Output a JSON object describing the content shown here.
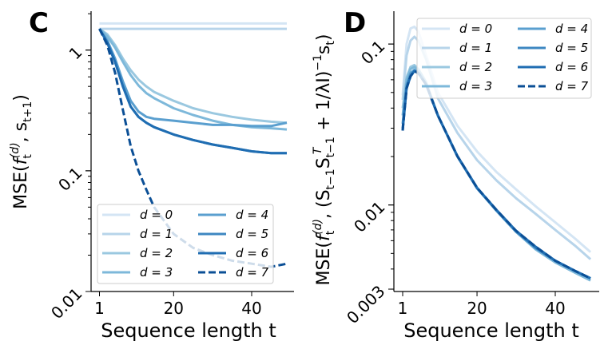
{
  "chart_data": [
    {
      "type": "line",
      "panel_label": "C",
      "xlabel": "Sequence length t",
      "ylabel": {
        "prefix": "MSE(",
        "f": "f",
        "f_sub": "t",
        "f_sup": "(d)",
        "mid": ", s",
        "s_sub": "t+1",
        "suffix": ")"
      },
      "xticks": [
        {
          "value": 1,
          "label": "1"
        },
        {
          "value": 20,
          "label": "20"
        },
        {
          "value": 40,
          "label": "40"
        }
      ],
      "yticks": [
        {
          "value": 1,
          "label": "1"
        },
        {
          "value": 0.1,
          "label": "0.1"
        },
        {
          "value": 0.01,
          "label": "0.01"
        }
      ],
      "xlim": [
        -1,
        51
      ],
      "ylim": [
        0.01,
        2.1
      ],
      "yscale": "log",
      "grid": false,
      "legend_placement": "lower-left",
      "x": [
        1,
        3,
        5,
        7,
        9,
        11,
        13,
        15,
        20,
        25,
        30,
        35,
        40,
        45,
        49
      ],
      "series": [
        {
          "name": "d = 0",
          "color": "#d4e5f4",
          "dashed": false,
          "values": [
            1.66,
            1.66,
            1.66,
            1.66,
            1.66,
            1.66,
            1.66,
            1.66,
            1.66,
            1.66,
            1.66,
            1.66,
            1.66,
            1.66,
            1.66
          ]
        },
        {
          "name": "d = 1",
          "color": "#b7d4ea",
          "dashed": false,
          "values": [
            1.5,
            1.5,
            1.5,
            1.5,
            1.5,
            1.5,
            1.5,
            1.5,
            1.5,
            1.5,
            1.5,
            1.5,
            1.5,
            1.5,
            1.5
          ]
        },
        {
          "name": "d = 2",
          "color": "#9ac8e0",
          "dashed": false,
          "values": [
            1.5,
            1.35,
            1.1,
            0.85,
            0.68,
            0.57,
            0.5,
            0.45,
            0.38,
            0.33,
            0.3,
            0.28,
            0.265,
            0.255,
            0.25
          ]
        },
        {
          "name": "d = 3",
          "color": "#7db8da",
          "dashed": false,
          "values": [
            1.5,
            1.3,
            1.05,
            0.8,
            0.62,
            0.51,
            0.44,
            0.4,
            0.33,
            0.29,
            0.26,
            0.24,
            0.23,
            0.225,
            0.22
          ]
        },
        {
          "name": "d = 4",
          "color": "#5a9fcf",
          "dashed": false,
          "values": [
            1.5,
            1.2,
            0.85,
            0.55,
            0.38,
            0.31,
            0.28,
            0.27,
            0.26,
            0.25,
            0.24,
            0.24,
            0.235,
            0.235,
            0.25
          ]
        },
        {
          "name": "d = 5",
          "color": "#3d87c1",
          "dashed": false,
          "values": [
            1.5,
            1.15,
            0.8,
            0.5,
            0.34,
            0.28,
            0.25,
            0.23,
            0.2,
            0.18,
            0.165,
            0.155,
            0.145,
            0.14,
            0.14
          ]
        },
        {
          "name": "d = 6",
          "color": "#1f6db2",
          "dashed": false,
          "values": [
            1.5,
            1.15,
            0.8,
            0.5,
            0.34,
            0.28,
            0.25,
            0.23,
            0.2,
            0.18,
            0.165,
            0.155,
            0.145,
            0.14,
            0.14
          ]
        },
        {
          "name": "d = 7",
          "color": "#0b4f96",
          "dashed": true,
          "values": [
            1.5,
            1.1,
            0.65,
            0.32,
            0.16,
            0.1,
            0.07,
            0.05,
            0.03,
            0.023,
            0.02,
            0.018,
            0.017,
            0.016,
            0.017
          ]
        }
      ]
    },
    {
      "type": "line",
      "panel_label": "D",
      "xlabel": "Sequence length t",
      "ylabel": {
        "prefix": "MSE(",
        "f": "f",
        "f_sub": "t",
        "f_sup": "(d)",
        "mid": ", (S",
        "s1_sub": "t−1",
        "s2": "S",
        "s2_sup": "T",
        "s2_sub": "t−1",
        "plus": " + 1/λI)",
        "inv_sup": "−1",
        "s3": "s",
        "s3_sub": "t",
        "suffix": ")"
      },
      "xticks": [
        {
          "value": 1,
          "label": "1"
        },
        {
          "value": 20,
          "label": "20"
        },
        {
          "value": 40,
          "label": "40"
        }
      ],
      "yticks": [
        {
          "value": 0.1,
          "label": "0.1"
        },
        {
          "value": 0.01,
          "label": "0.01"
        },
        {
          "value": 0.003,
          "label": "0.003"
        }
      ],
      "xlim": [
        -1,
        51
      ],
      "ylim": [
        0.0029,
        0.16
      ],
      "yscale": "log",
      "grid": false,
      "legend_placement": "upper-right",
      "x": [
        1,
        2,
        3,
        4,
        5,
        7,
        10,
        15,
        20,
        25,
        30,
        35,
        40,
        45,
        49
      ],
      "series": [
        {
          "name": "d = 0",
          "color": "#d4e5f4",
          "dashed": false,
          "values": [
            0.048,
            0.1,
            0.125,
            0.128,
            0.12,
            0.085,
            0.05,
            0.031,
            0.0215,
            0.016,
            0.0125,
            0.0098,
            0.0078,
            0.0062,
            0.0051
          ]
        },
        {
          "name": "d = 1",
          "color": "#b7d4ea",
          "dashed": false,
          "values": [
            0.045,
            0.085,
            0.105,
            0.111,
            0.105,
            0.08,
            0.046,
            0.028,
            0.019,
            0.0142,
            0.011,
            0.0088,
            0.007,
            0.0056,
            0.0046
          ]
        },
        {
          "name": "d = 2",
          "color": "#9ac8e0",
          "dashed": false,
          "values": [
            0.04,
            0.062,
            0.072,
            0.074,
            0.07,
            0.058,
            0.036,
            0.02,
            0.0128,
            0.0092,
            0.0068,
            0.0053,
            0.0044,
            0.0038,
            0.0034
          ]
        },
        {
          "name": "d = 3",
          "color": "#7db8da",
          "dashed": false,
          "values": [
            0.036,
            0.06,
            0.07,
            0.072,
            0.069,
            0.057,
            0.036,
            0.02,
            0.0127,
            0.0092,
            0.0068,
            0.0053,
            0.0044,
            0.0038,
            0.0034
          ]
        },
        {
          "name": "d = 4",
          "color": "#5a9fcf",
          "dashed": false,
          "values": [
            0.032,
            0.056,
            0.066,
            0.069,
            0.067,
            0.056,
            0.036,
            0.02,
            0.0127,
            0.0092,
            0.0068,
            0.0054,
            0.0045,
            0.0039,
            0.0035
          ]
        },
        {
          "name": "d = 5",
          "color": "#3d87c1",
          "dashed": false,
          "values": [
            0.03,
            0.054,
            0.064,
            0.068,
            0.066,
            0.056,
            0.036,
            0.02,
            0.0127,
            0.0093,
            0.0069,
            0.0054,
            0.0045,
            0.0039,
            0.0035
          ]
        },
        {
          "name": "d = 6",
          "color": "#1f6db2",
          "dashed": false,
          "values": [
            0.029,
            0.053,
            0.063,
            0.068,
            0.066,
            0.056,
            0.036,
            0.0201,
            0.0128,
            0.0093,
            0.0069,
            0.0055,
            0.0045,
            0.0039,
            0.0035
          ]
        },
        {
          "name": "d = 7",
          "color": "#0b4f96",
          "dashed": true,
          "values": [
            0.029,
            0.053,
            0.063,
            0.068,
            0.066,
            0.056,
            0.036,
            0.0201,
            0.0128,
            0.0093,
            0.0069,
            0.0055,
            0.0045,
            0.0039,
            0.0035
          ]
        }
      ]
    }
  ]
}
